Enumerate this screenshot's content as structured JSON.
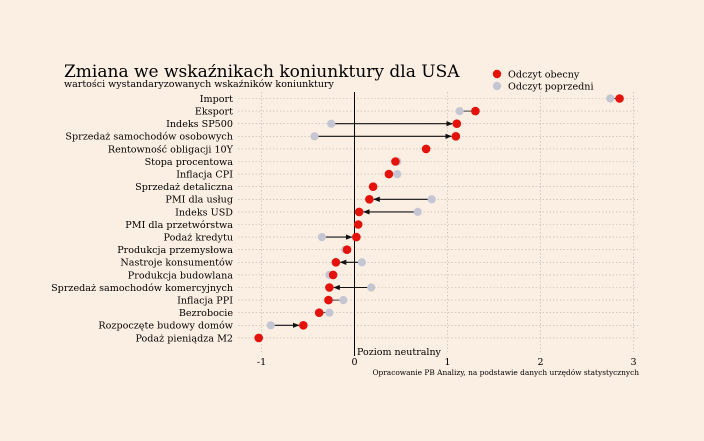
{
  "chart_data": {
    "type": "scatter",
    "title": "Zmiana we wskaźnikach koniunktury dla USA",
    "subtitle": "wartości wystandaryzowanych wskaźników koniunktury",
    "source_note": "Opracowanie PB Analizy, na podstawie danych urzędów statystycznych",
    "zero_label": "Poziom neutralny",
    "xlim": [
      -1.05,
      3.05
    ],
    "xticks": [
      "-1",
      "0",
      "1",
      "2",
      "3"
    ],
    "grid": true,
    "legend_position": "top-right",
    "colors": {
      "current": "#e3120b",
      "previous": "#c4c7d3",
      "arrow": "#111111",
      "grid": "#b9b3ad"
    },
    "series": [
      {
        "name": "Odczyt obecny",
        "key": "current"
      },
      {
        "name": "Odczyt poprzedni",
        "key": "previous"
      }
    ],
    "categories": [
      "Import",
      "Eksport",
      "Indeks SP500",
      "Sprzedaż samochodów osobowych",
      "Rentowność obligacji 10Y",
      "Stopa procentowa",
      "Inflacja CPI",
      "Sprzedaż detaliczna",
      "PMI dla usług",
      "Indeks USD",
      "PMI dla przetwórstwa",
      "Podaż kredytu",
      "Produkcja przemysłowa",
      "Nastroje konsumentów",
      "Produkcja budowlana",
      "Sprzedaż samochodów komercyjnych",
      "Inflacja PPI",
      "Bezrobocie",
      "Rozpoczęte budowy domów",
      "Podaż pieniądza M2"
    ],
    "current": [
      2.85,
      1.3,
      1.1,
      1.09,
      0.77,
      0.44,
      0.37,
      0.2,
      0.16,
      0.05,
      0.04,
      0.02,
      -0.08,
      -0.2,
      -0.23,
      -0.27,
      -0.28,
      -0.38,
      -0.55,
      -1.03
    ],
    "previous": [
      2.75,
      1.13,
      -0.25,
      -0.43,
      0.77,
      0.46,
      0.46,
      0.2,
      0.83,
      0.68,
      0.04,
      -0.35,
      -0.1,
      0.08,
      -0.27,
      0.18,
      -0.12,
      -0.27,
      -0.9,
      -1.03
    ],
    "arrows": [
      false,
      false,
      true,
      true,
      false,
      false,
      false,
      false,
      true,
      true,
      false,
      true,
      false,
      true,
      false,
      true,
      false,
      false,
      true,
      false
    ]
  }
}
